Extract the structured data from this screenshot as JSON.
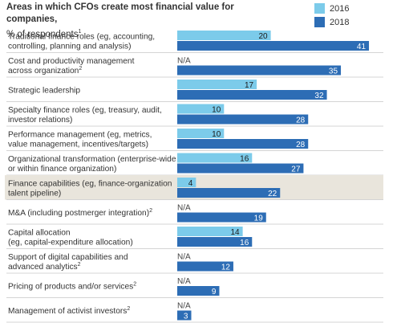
{
  "header": {
    "title": "Areas in which CFOs create most financial value for companies,",
    "subtitle": "% of respondents",
    "subtitle_note": "1"
  },
  "legend": [
    {
      "name": "2016",
      "color": "#7ccbea"
    },
    {
      "name": "2018",
      "color": "#2d6db5"
    }
  ],
  "chart_data": {
    "type": "bar",
    "orientation": "horizontal",
    "xlim": [
      0,
      42
    ],
    "highlight_color": "#e9e5dc",
    "na_label": "N/A",
    "categories": [
      {
        "lines": [
          "Traditional finance roles (eg, accounting,",
          "controlling, planning and analysis)"
        ],
        "note": ""
      },
      {
        "lines": [
          "Cost and productivity management",
          "across organization"
        ],
        "note": "2"
      },
      {
        "lines": [
          "Strategic leadership"
        ],
        "note": ""
      },
      {
        "lines": [
          "Specialty finance roles (eg, treasury, audit,",
          "investor relations)"
        ],
        "note": ""
      },
      {
        "lines": [
          "Performance management (eg, metrics,",
          "value management, incentives/targets)"
        ],
        "note": ""
      },
      {
        "lines": [
          "Organizational transformation (enterprise-wide",
          "or within finance organization)"
        ],
        "note": ""
      },
      {
        "lines": [
          "Finance capabilities (eg, finance-organization",
          "talent pipeline)"
        ],
        "note": "",
        "highlight": true
      },
      {
        "lines": [
          "M&A (including postmerger integration)"
        ],
        "note": "2"
      },
      {
        "lines": [
          "Capital allocation",
          "(eg, capital-expenditure allocation)"
        ],
        "note": ""
      },
      {
        "lines": [
          "Support of digital capabilities and",
          "advanced analytics"
        ],
        "note": "2"
      },
      {
        "lines": [
          "Pricing of products and/or services"
        ],
        "note": "2"
      },
      {
        "lines": [
          "Management of activist investors"
        ],
        "note": "2"
      }
    ],
    "series": [
      {
        "name": "2016",
        "color": "#7ccbea",
        "values": [
          20,
          null,
          17,
          10,
          10,
          16,
          4,
          null,
          14,
          null,
          null,
          null
        ]
      },
      {
        "name": "2018",
        "color": "#2d6db5",
        "values": [
          41,
          35,
          32,
          28,
          28,
          27,
          22,
          19,
          16,
          12,
          9,
          3
        ]
      }
    ]
  }
}
